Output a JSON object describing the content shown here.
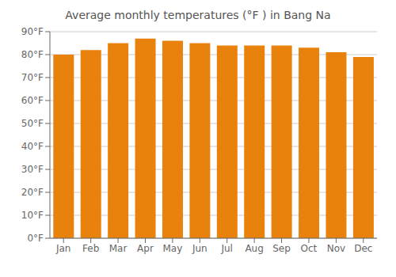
{
  "chart_data": {
    "type": "bar",
    "title": "Average monthly temperatures (°F ) in Bang Na",
    "categories": [
      "Jan",
      "Feb",
      "Mar",
      "Apr",
      "May",
      "Jun",
      "Jul",
      "Aug",
      "Sep",
      "Oct",
      "Nov",
      "Dec"
    ],
    "values": [
      80,
      82,
      85,
      87,
      86,
      85,
      84,
      84,
      84,
      83,
      81,
      79
    ],
    "color": "#E8820C",
    "ylim": [
      0,
      90
    ],
    "yticks": [
      {
        "value": 0,
        "label": "0°F"
      },
      {
        "value": 10,
        "label": "10°F"
      },
      {
        "value": 20,
        "label": "20°F"
      },
      {
        "value": 30,
        "label": "30°F"
      },
      {
        "value": 40,
        "label": "40°F"
      },
      {
        "value": 50,
        "label": "50°F"
      },
      {
        "value": 60,
        "label": "60°F"
      },
      {
        "value": 70,
        "label": "70°F"
      },
      {
        "value": 80,
        "label": "80°F"
      },
      {
        "value": 90,
        "label": "90°F"
      }
    ],
    "grid": true
  }
}
